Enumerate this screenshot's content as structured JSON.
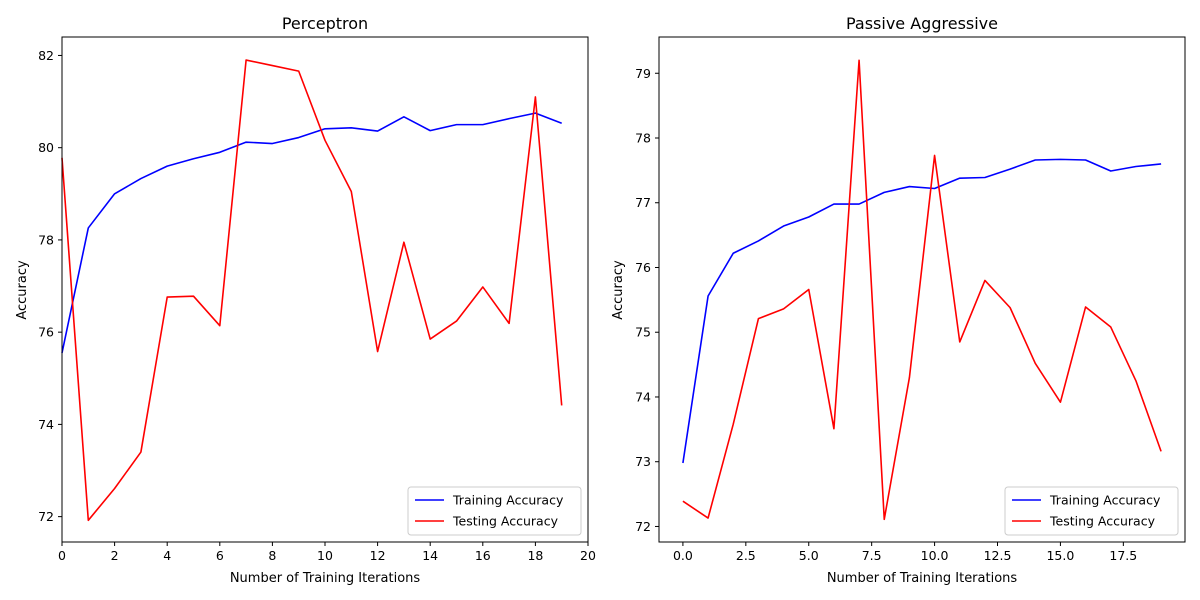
{
  "chart_data": [
    {
      "type": "line",
      "title": "Perceptron",
      "xlabel": "Number of Training Iterations",
      "ylabel": "Accuracy",
      "xlim": [
        0,
        20
      ],
      "ylim": [
        71.45,
        82.4
      ],
      "xticks": [
        0,
        2,
        4,
        6,
        8,
        10,
        12,
        14,
        16,
        18,
        20
      ],
      "xtick_labels": [
        "0",
        "2",
        "4",
        "6",
        "8",
        "10",
        "12",
        "14",
        "16",
        "18",
        "20"
      ],
      "yticks": [
        72,
        74,
        76,
        78,
        80,
        82
      ],
      "ytick_labels": [
        "72",
        "74",
        "76",
        "78",
        "80",
        "82"
      ],
      "grid": false,
      "legend_position": "lower-right",
      "x": [
        0,
        1,
        2,
        3,
        4,
        5,
        6,
        7,
        8,
        9,
        10,
        11,
        12,
        13,
        14,
        15,
        16,
        17,
        18,
        19
      ],
      "series": [
        {
          "name": "Training Accuracy",
          "color": "#0000ff",
          "values": [
            75.55,
            78.26,
            79.0,
            79.33,
            79.6,
            79.76,
            79.9,
            80.12,
            80.09,
            80.22,
            80.41,
            80.43,
            80.36,
            80.67,
            80.37,
            80.5,
            80.5,
            80.63,
            80.75,
            80.53
          ]
        },
        {
          "name": "Testing Accuracy",
          "color": "#ff0000",
          "values": [
            79.78,
            71.92,
            72.61,
            73.4,
            76.76,
            76.78,
            76.14,
            81.9,
            81.78,
            81.66,
            80.16,
            79.05,
            75.58,
            77.95,
            75.85,
            76.24,
            76.98,
            76.19,
            81.1,
            74.41
          ]
        }
      ]
    },
    {
      "type": "line",
      "title": "Passive Aggressive",
      "xlabel": "Number of Training Iterations",
      "ylabel": "Accuracy",
      "xlim": [
        -0.95,
        19.95
      ],
      "ylim": [
        71.76,
        79.56
      ],
      "xticks": [
        0,
        2.5,
        5,
        7.5,
        10,
        12.5,
        15,
        17.5
      ],
      "xtick_labels": [
        "0.0",
        "2.5",
        "5.0",
        "7.5",
        "10.0",
        "12.5",
        "15.0",
        "17.5"
      ],
      "yticks": [
        72,
        73,
        74,
        75,
        76,
        77,
        78,
        79
      ],
      "ytick_labels": [
        "72",
        "73",
        "74",
        "75",
        "76",
        "77",
        "78",
        "79"
      ],
      "grid": false,
      "legend_position": "lower-right",
      "x": [
        0,
        1,
        2,
        3,
        4,
        5,
        6,
        7,
        8,
        9,
        10,
        11,
        12,
        13,
        14,
        15,
        16,
        17,
        18,
        19
      ],
      "series": [
        {
          "name": "Training Accuracy",
          "color": "#0000ff",
          "values": [
            72.98,
            75.56,
            76.22,
            76.41,
            76.64,
            76.78,
            76.98,
            76.98,
            77.16,
            77.25,
            77.22,
            77.38,
            77.39,
            77.52,
            77.66,
            77.67,
            77.66,
            77.49,
            77.56,
            77.6
          ]
        },
        {
          "name": "Testing Accuracy",
          "color": "#ff0000",
          "values": [
            72.39,
            72.13,
            73.58,
            75.21,
            75.36,
            75.66,
            73.51,
            79.2,
            72.11,
            74.3,
            77.73,
            74.85,
            75.8,
            75.38,
            74.52,
            73.92,
            75.39,
            75.08,
            74.25,
            73.16
          ]
        }
      ]
    }
  ]
}
